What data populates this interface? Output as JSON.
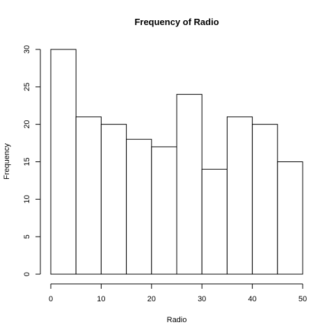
{
  "chart_data": {
    "type": "bar",
    "title": "Frequency of Radio",
    "xlabel": "Radio",
    "ylabel": "Frequency",
    "bins": [
      {
        "start": 0,
        "end": 5,
        "value": 30
      },
      {
        "start": 5,
        "end": 10,
        "value": 21
      },
      {
        "start": 10,
        "end": 15,
        "value": 20
      },
      {
        "start": 15,
        "end": 20,
        "value": 18
      },
      {
        "start": 20,
        "end": 25,
        "value": 17
      },
      {
        "start": 25,
        "end": 30,
        "value": 24
      },
      {
        "start": 30,
        "end": 35,
        "value": 14
      },
      {
        "start": 35,
        "end": 40,
        "value": 21
      },
      {
        "start": 40,
        "end": 45,
        "value": 20
      },
      {
        "start": 45,
        "end": 50,
        "value": 15
      }
    ],
    "xlim": [
      0,
      50
    ],
    "ylim": [
      0,
      30
    ],
    "xticks": [
      0,
      10,
      20,
      30,
      40,
      50
    ],
    "yticks": [
      0,
      5,
      10,
      15,
      20,
      25,
      30
    ],
    "grid": false,
    "bar_fill": "#ffffff",
    "bar_stroke": "#000000"
  }
}
